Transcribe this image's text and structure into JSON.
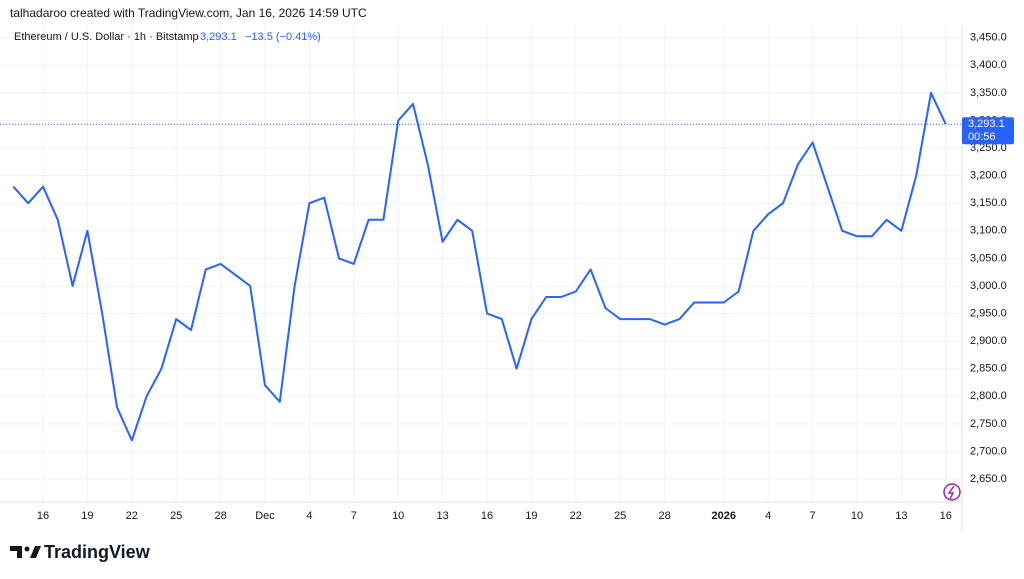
{
  "header": {
    "attribution": "talhadaroo created with TradingView.com, Jan 16, 2026 14:59 UTC"
  },
  "legend": {
    "symbol": "Ethereum / U.S. Dollar · 1h · Bitstamp",
    "price": "3,293.1",
    "change": "−13.5 (−0.41%)"
  },
  "footer": {
    "brand": "TradingView"
  },
  "chart_data": {
    "type": "line",
    "categories": [
      null,
      null,
      "16",
      null,
      null,
      "19",
      null,
      null,
      "22",
      null,
      null,
      "25",
      null,
      null,
      "28",
      null,
      null,
      "Dec",
      null,
      null,
      "4",
      null,
      null,
      "7",
      null,
      null,
      "10",
      null,
      null,
      "13",
      null,
      null,
      "16",
      null,
      null,
      "19",
      null,
      null,
      "22",
      null,
      null,
      "25",
      null,
      null,
      "28",
      null,
      null,
      null,
      "2026",
      null,
      null,
      "4",
      null,
      null,
      "7",
      null,
      null,
      "10",
      null,
      null,
      "13",
      null,
      null,
      "16"
    ],
    "series": [
      {
        "name": "Ethereum / U.S. Dollar",
        "color": "#2962ff",
        "values": [
          3180,
          3150,
          3180,
          3120,
          3000,
          3100,
          2950,
          2780,
          2720,
          2800,
          2850,
          2940,
          2920,
          3030,
          3040,
          3020,
          3000,
          2820,
          2790,
          3000,
          3150,
          3160,
          3050,
          3040,
          3120,
          3120,
          3300,
          3330,
          3220,
          3080,
          3120,
          3100,
          2950,
          2940,
          2850,
          2940,
          2980,
          2980,
          2990,
          3030,
          2960,
          2940,
          2940,
          2940,
          2930,
          2940,
          2970,
          2970,
          2970,
          2990,
          3100,
          3130,
          3150,
          3220,
          3260,
          3180,
          3100,
          3090,
          3090,
          3120,
          3100,
          3200,
          3350,
          3293.1
        ]
      }
    ],
    "last_price": {
      "value": 3293.1,
      "label": "3,293.1"
    },
    "countdown": "00:56",
    "ylim": [
      2612,
      3464
    ],
    "yticks": [
      {
        "value": 2650,
        "label": "2,650.0"
      },
      {
        "value": 2700,
        "label": "2,700.0"
      },
      {
        "value": 2750,
        "label": "2,750.0"
      },
      {
        "value": 2800,
        "label": "2,800.0"
      },
      {
        "value": 2850,
        "label": "2,850.0"
      },
      {
        "value": 2900,
        "label": "2,900.0"
      },
      {
        "value": 2950,
        "label": "2,950.0"
      },
      {
        "value": 3000,
        "label": "3,000.0"
      },
      {
        "value": 3050,
        "label": "3,050.0"
      },
      {
        "value": 3100,
        "label": "3,100.0"
      },
      {
        "value": 3150,
        "label": "3,150.0"
      },
      {
        "value": 3200,
        "label": "3,200.0"
      },
      {
        "value": 3250,
        "label": "3,250.0"
      },
      {
        "value": 3300,
        "label": "3,300.0"
      },
      {
        "value": 3350,
        "label": "3,350.0"
      },
      {
        "value": 3400,
        "label": "3,400.0"
      },
      {
        "value": 3450,
        "label": "3,450.0"
      }
    ],
    "grid": true
  }
}
